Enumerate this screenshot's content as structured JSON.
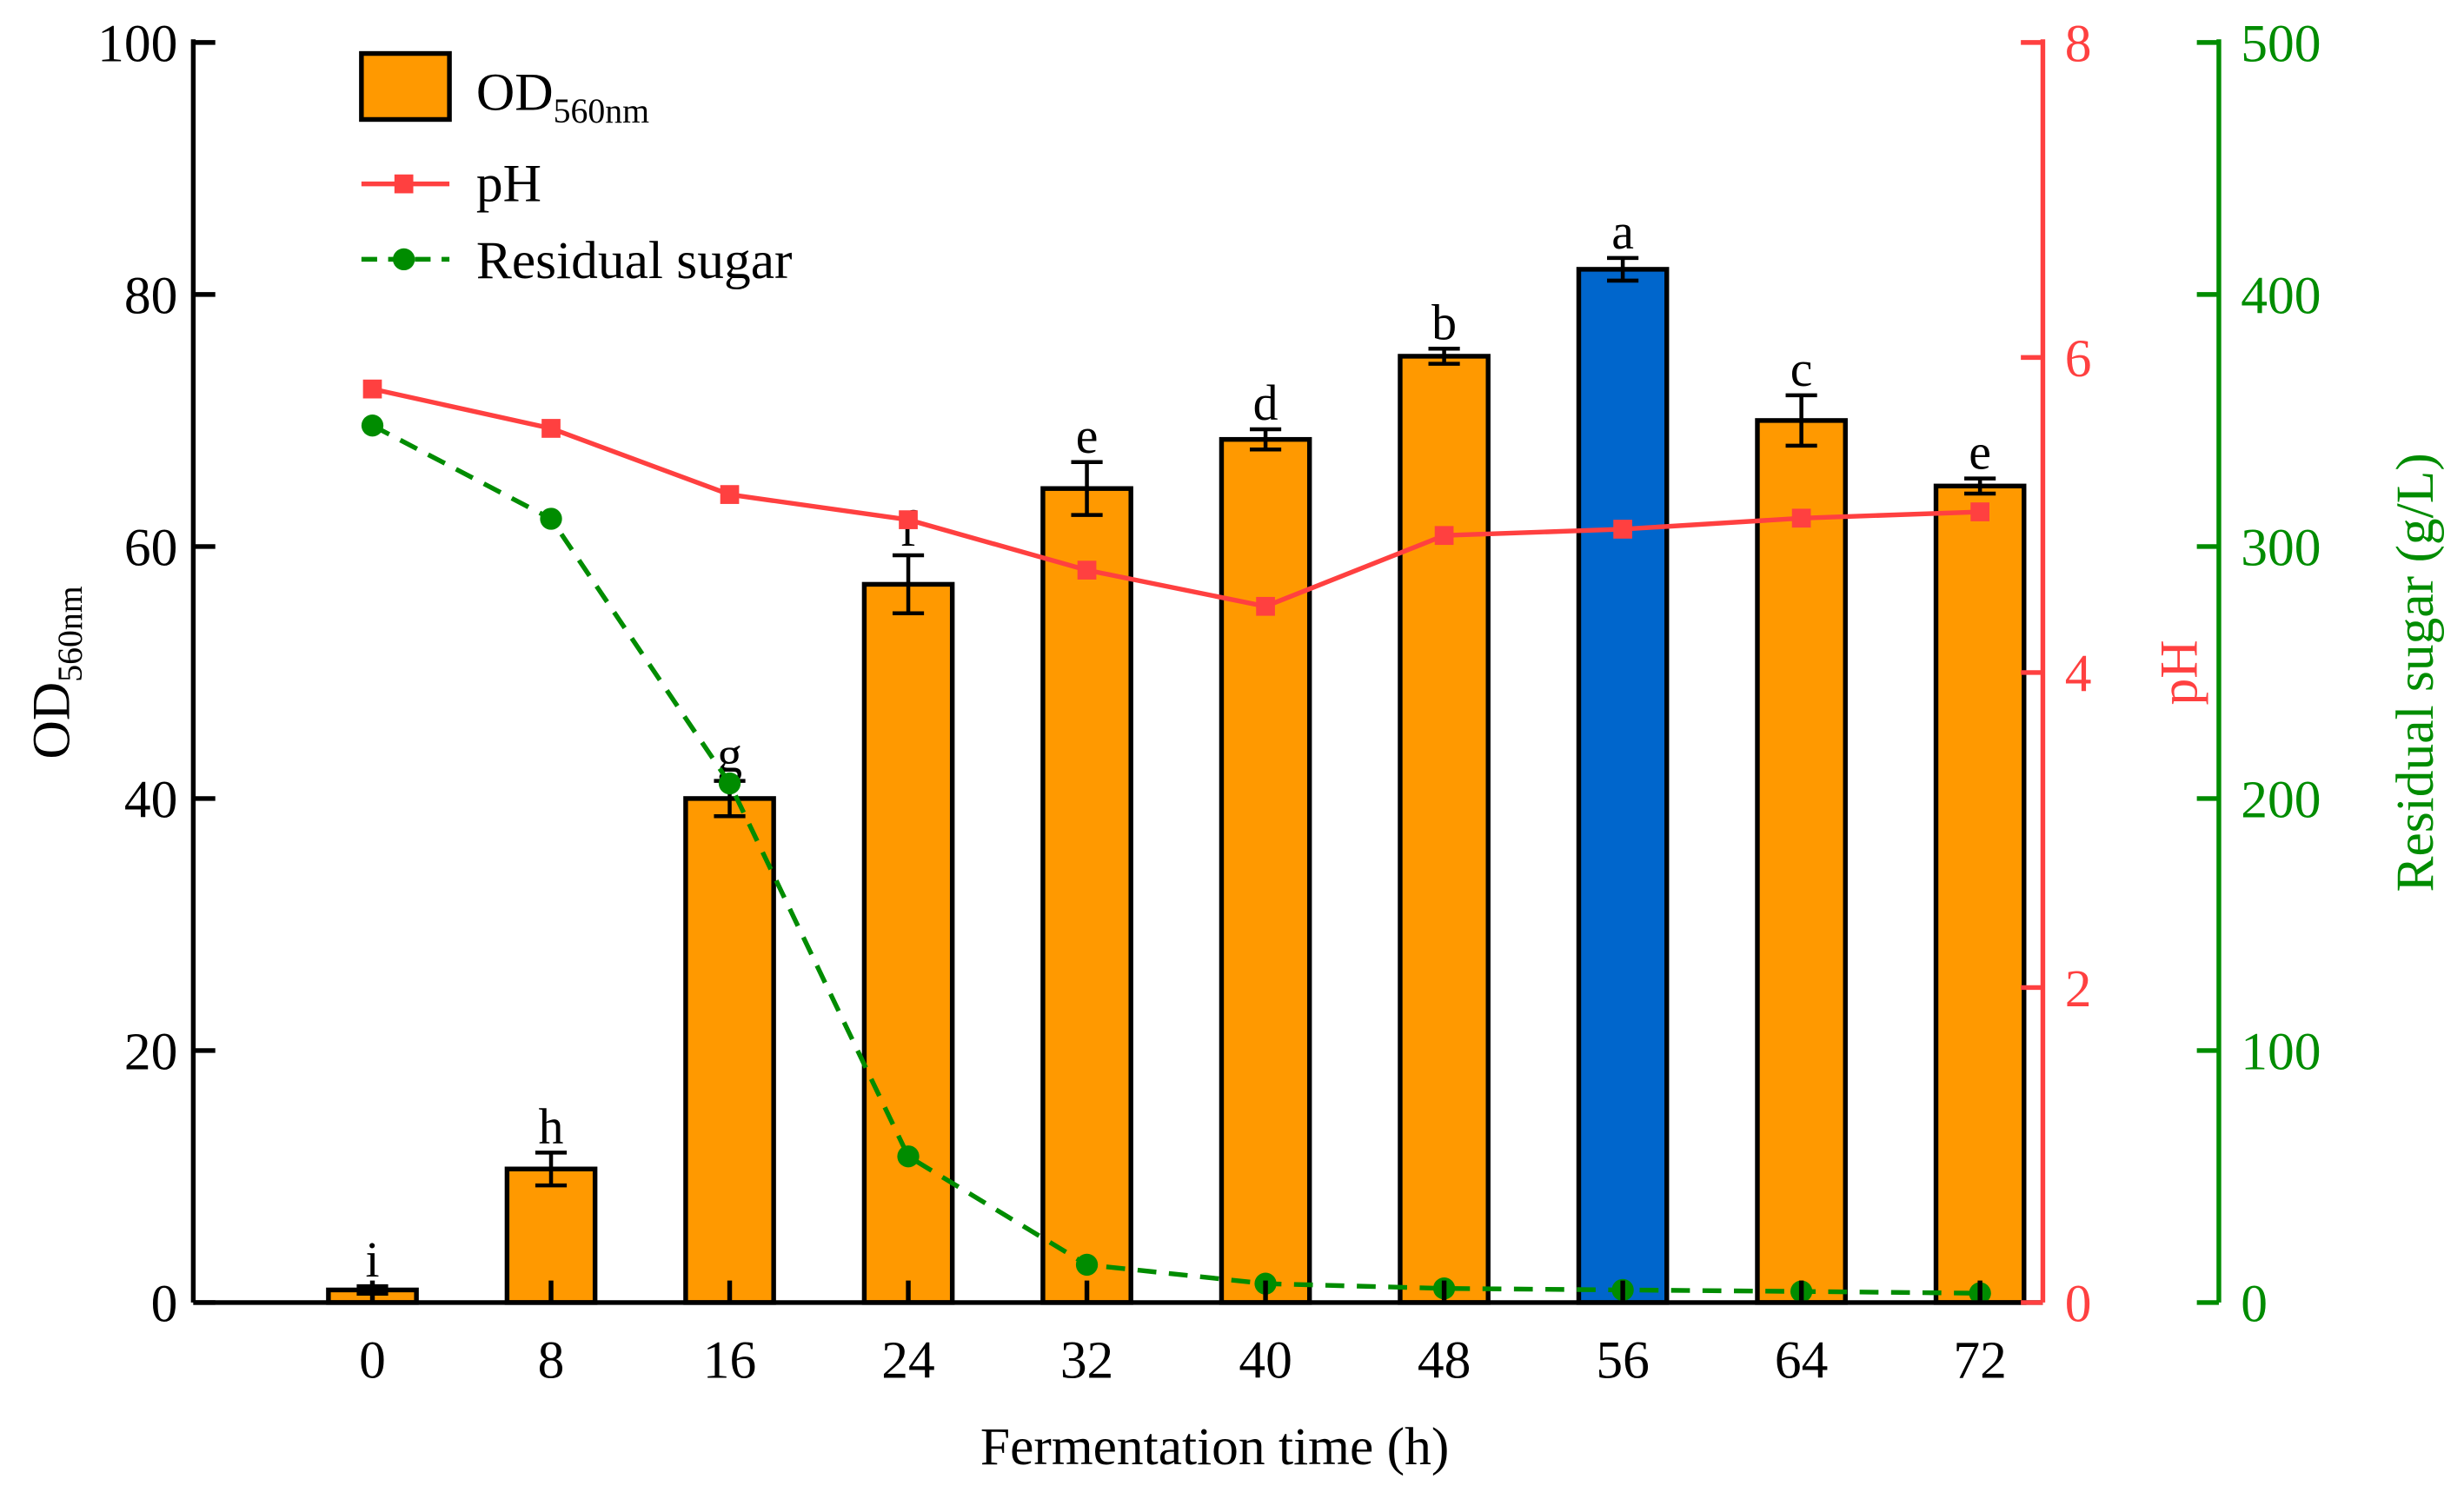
{
  "chart_data": {
    "type": "bar+line",
    "xlabel": "Fermentation time (h)",
    "categories": [
      "0",
      "8",
      "16",
      "24",
      "32",
      "40",
      "48",
      "56",
      "64",
      "72"
    ],
    "axes": {
      "left": {
        "label_main": "OD",
        "label_sub": "560nm",
        "ylim": [
          0,
          100
        ],
        "ticks": [
          "0",
          "20",
          "40",
          "60",
          "80",
          "100"
        ],
        "color": "#000000"
      },
      "right1": {
        "label": "pH",
        "ylim": [
          0,
          8
        ],
        "ticks": [
          "0",
          "2",
          "4",
          "6",
          "8"
        ],
        "color": "#FF4040"
      },
      "right2": {
        "label": "Residual sugar (g/L)",
        "ylim": [
          0,
          500
        ],
        "ticks": [
          "0",
          "100",
          "200",
          "300",
          "400",
          "500"
        ],
        "color": "#008C00"
      }
    },
    "series": [
      {
        "name_main": "OD",
        "name_sub": "560nm",
        "type": "bar",
        "axis": "left",
        "values": [
          1.0,
          10.6,
          40.0,
          57.0,
          64.6,
          68.5,
          75.1,
          82.0,
          70.0,
          64.8
        ],
        "errors": [
          0.3,
          1.3,
          1.4,
          2.3,
          2.1,
          0.8,
          0.6,
          0.9,
          2.0,
          0.6
        ],
        "letters": [
          "i",
          "h",
          "g",
          "f",
          "e",
          "d",
          "b",
          "a",
          "c",
          "e"
        ],
        "color": "#FF9900",
        "highlight_color": "#0066CC",
        "highlight_index": 7
      },
      {
        "name": "pH",
        "type": "line",
        "axis": "right1",
        "marker": "square",
        "values": [
          5.8,
          5.55,
          5.13,
          4.97,
          4.65,
          4.42,
          4.87,
          4.91,
          4.98,
          5.02
        ],
        "color": "#FF4040"
      },
      {
        "name": "Residual sugar",
        "type": "line",
        "axis": "right2",
        "marker": "circle",
        "dash": "dashed",
        "values": [
          348,
          311,
          206,
          58,
          15,
          7.5,
          5.6,
          5.0,
          4.4,
          3.7
        ],
        "color": "#008C00"
      }
    ],
    "legend": "top-left",
    "grid": false
  }
}
